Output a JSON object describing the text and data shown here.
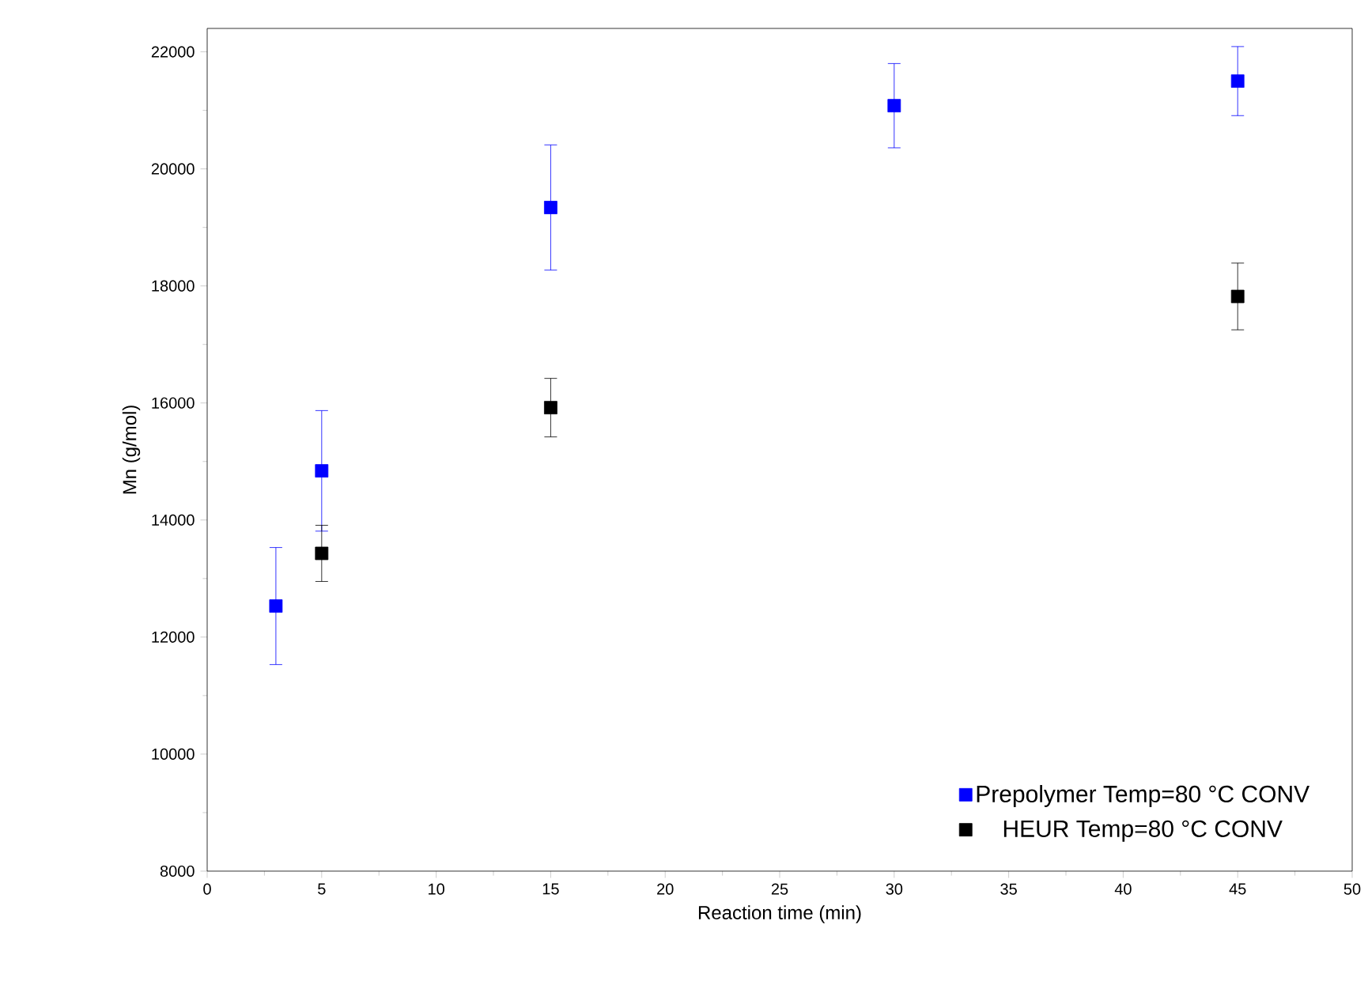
{
  "chart_data": {
    "type": "scatter",
    "xlabel": "Reaction time (min)",
    "ylabel": "Mn (g/mol)",
    "xlim": [
      0,
      50
    ],
    "xticks": [
      0,
      5,
      10,
      15,
      20,
      25,
      30,
      35,
      40,
      45,
      50
    ],
    "ylim": [
      8000,
      22400
    ],
    "yticks": [
      8000,
      10000,
      12000,
      14000,
      16000,
      18000,
      20000,
      22000
    ],
    "marker": "square",
    "legend": "bottom right",
    "grid": false,
    "series": [
      {
        "name": "Prepolymer Temp=80 °C CONV",
        "color": "#0000ff",
        "x": [
          3,
          5,
          15,
          30,
          45
        ],
        "values": [
          12530,
          14840,
          19340,
          21080,
          21500
        ],
        "errors": [
          1000,
          1030,
          1070,
          720,
          590
        ]
      },
      {
        "name": "HEUR Temp=80 °C CONV",
        "color": "#000000",
        "x": [
          5,
          15,
          45
        ],
        "values": [
          13430,
          15920,
          17820
        ],
        "errors": [
          480,
          500,
          570
        ]
      }
    ]
  }
}
